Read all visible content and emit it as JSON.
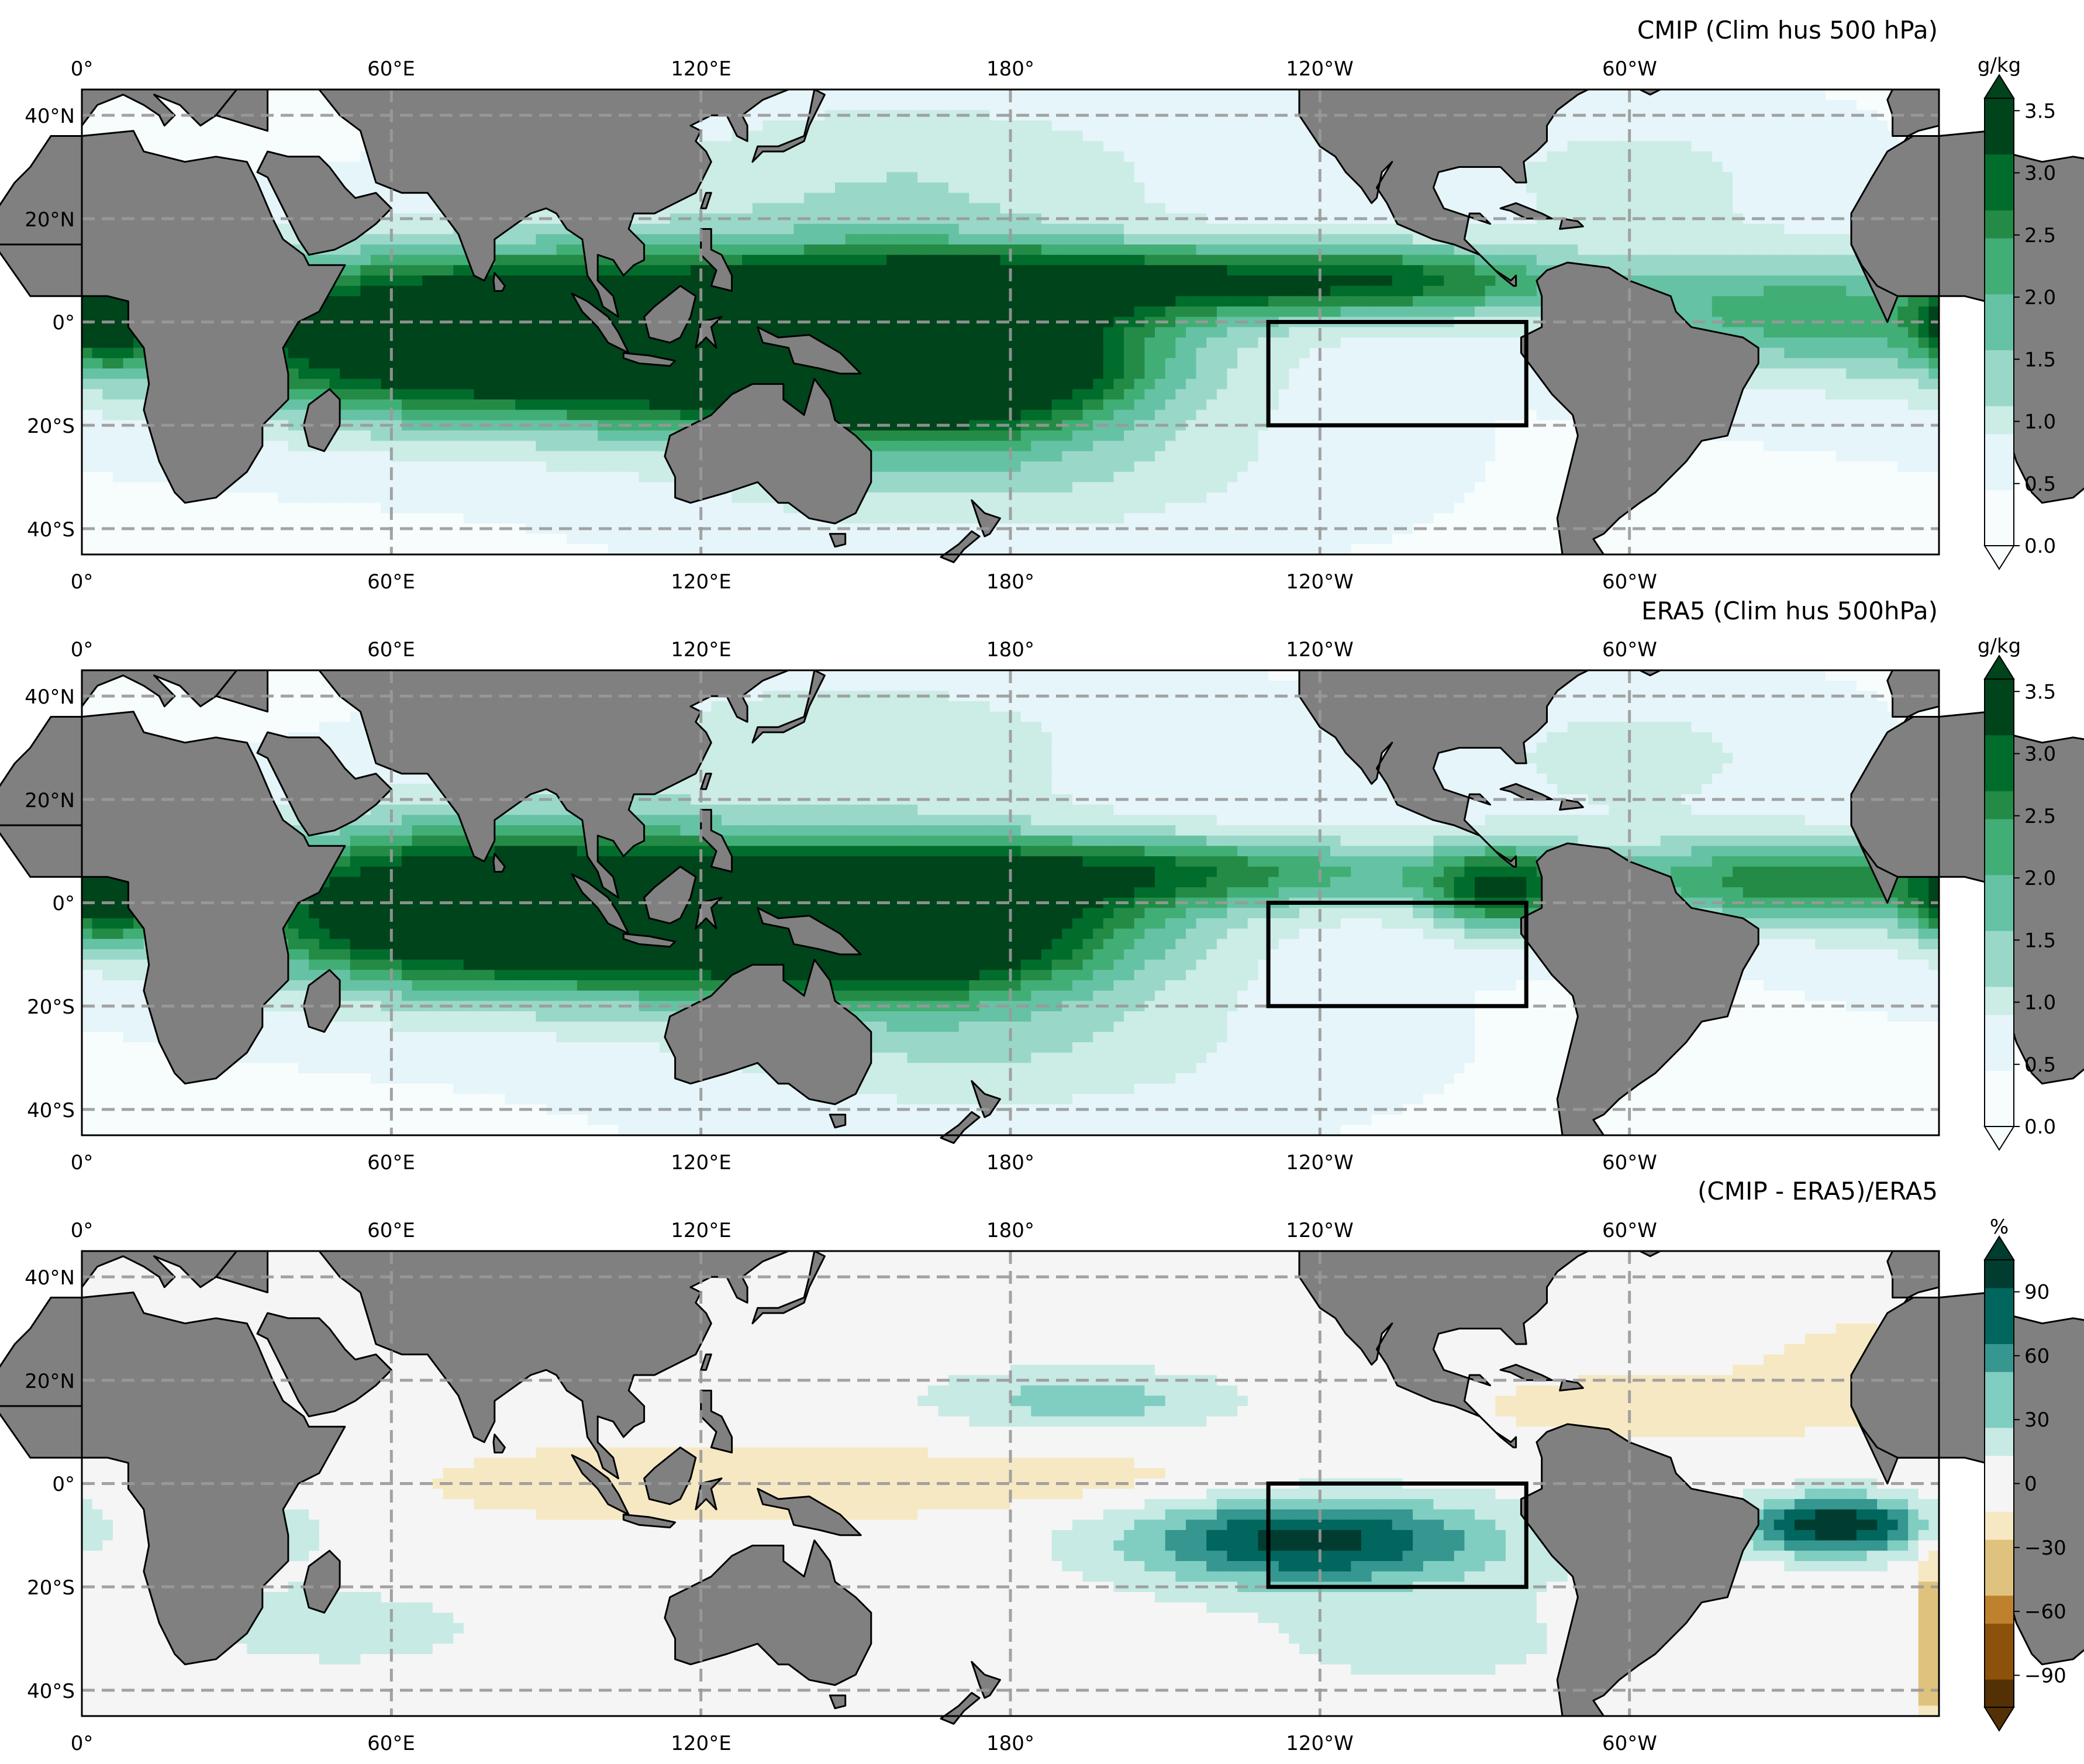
{
  "chart_data": [
    {
      "type": "heatmap",
      "title": "CMIP (Clim hus 500 hPa)",
      "colorbar_label": "g/kg",
      "colorbar_ticks": [
        "0.0",
        "0.5",
        "1.0",
        "1.5",
        "2.0",
        "2.5",
        "3.0",
        "3.5"
      ],
      "colorbar_range": [
        0,
        3.6
      ],
      "colormap": [
        "#f7fcfd",
        "#e5f5f9",
        "#ccece6",
        "#99d8c9",
        "#66c2a4",
        "#41ae76",
        "#238b45",
        "#006d2c",
        "#00441b"
      ],
      "x_ticks": [
        "0°",
        "60°E",
        "120°E",
        "180°",
        "120°W",
        "60°W"
      ],
      "y_ticks": [
        "40°N",
        "20°N",
        "0°",
        "20°S",
        "40°S"
      ],
      "region_box": {
        "lon": [
          230,
          280
        ],
        "lat": [
          -20,
          0
        ]
      },
      "field": [
        {
          "lon": 100,
          "lat": -3,
          "value": 3.0,
          "sx": 60,
          "sy": 11
        },
        {
          "lon": 150,
          "lat": -4,
          "value": 3.0,
          "sx": 35,
          "sy": 10
        },
        {
          "lon": 165,
          "lat": -10,
          "value": 2.4,
          "sx": 25,
          "sy": 8
        },
        {
          "lon": 70,
          "lat": -2,
          "value": 1.8,
          "sx": 30,
          "sy": 11
        },
        {
          "lon": 200,
          "lat": 8,
          "value": 2.2,
          "sx": 40,
          "sy": 5
        },
        {
          "lon": 255,
          "lat": 8,
          "value": 1.8,
          "sx": 25,
          "sy": 5
        },
        {
          "lon": 330,
          "lat": 2,
          "value": 1.6,
          "sx": 30,
          "sy": 8
        },
        {
          "lon": 5,
          "lat": 0,
          "value": 2.0,
          "sx": 6,
          "sy": 6
        },
        {
          "lon": 160,
          "lat": 28,
          "value": 0.8,
          "sx": 40,
          "sy": 12
        },
        {
          "lon": 300,
          "lat": 28,
          "value": 0.6,
          "sx": 25,
          "sy": 10
        },
        {
          "lon": 175,
          "lat": -28,
          "value": 0.9,
          "sx": 40,
          "sy": 10
        }
      ]
    },
    {
      "type": "heatmap",
      "title": "ERA5 (Clim hus 500hPa)",
      "colorbar_label": "g/kg",
      "colorbar_ticks": [
        "0.0",
        "0.5",
        "1.0",
        "1.5",
        "2.0",
        "2.5",
        "3.0",
        "3.5"
      ],
      "colorbar_range": [
        0,
        3.6
      ],
      "colormap": [
        "#f7fcfd",
        "#e5f5f9",
        "#ccece6",
        "#99d8c9",
        "#66c2a4",
        "#41ae76",
        "#238b45",
        "#006d2c",
        "#00441b"
      ],
      "x_ticks": [
        "0°",
        "60°E",
        "120°E",
        "180°",
        "120°W",
        "60°W"
      ],
      "y_ticks": [
        "40°N",
        "20°N",
        "0°",
        "20°S",
        "40°S"
      ],
      "region_box": {
        "lon": [
          230,
          280
        ],
        "lat": [
          -20,
          0
        ]
      },
      "field": [
        {
          "lon": 110,
          "lat": -2,
          "value": 3.3,
          "sx": 55,
          "sy": 10
        },
        {
          "lon": 160,
          "lat": -6,
          "value": 2.8,
          "sx": 30,
          "sy": 9
        },
        {
          "lon": 75,
          "lat": 0,
          "value": 2.0,
          "sx": 30,
          "sy": 12
        },
        {
          "lon": 210,
          "lat": 6,
          "value": 2.0,
          "sx": 45,
          "sy": 5
        },
        {
          "lon": 275,
          "lat": 2,
          "value": 2.2,
          "sx": 10,
          "sy": 6
        },
        {
          "lon": 335,
          "lat": 4,
          "value": 2.2,
          "sx": 30,
          "sy": 6
        },
        {
          "lon": 5,
          "lat": 0,
          "value": 2.0,
          "sx": 6,
          "sy": 6
        },
        {
          "lon": 150,
          "lat": 30,
          "value": 0.7,
          "sx": 40,
          "sy": 12
        },
        {
          "lon": 300,
          "lat": 28,
          "value": 0.6,
          "sx": 25,
          "sy": 10
        },
        {
          "lon": 175,
          "lat": -28,
          "value": 0.8,
          "sx": 40,
          "sy": 10
        }
      ]
    },
    {
      "type": "heatmap",
      "title": "(CMIP - ERA5)/ERA5",
      "colorbar_label": "%",
      "colorbar_ticks": [
        "90",
        "60",
        "30",
        "0",
        "−30",
        "−60",
        "−90"
      ],
      "colorbar_range": [
        -105,
        105
      ],
      "colormap": [
        "#543005",
        "#8c510a",
        "#bf812d",
        "#dfc27d",
        "#f6e8c3",
        "#f5f5f5",
        "#c7eae5",
        "#80cdc1",
        "#35978f",
        "#01665e",
        "#003c30"
      ],
      "x_ticks": [
        "0°",
        "60°E",
        "120°E",
        "180°",
        "120°W",
        "60°W"
      ],
      "y_ticks": [
        "40°N",
        "20°N",
        "0°",
        "20°S",
        "40°S"
      ],
      "region_box": {
        "lon": [
          230,
          280
        ],
        "lat": [
          -20,
          0
        ]
      },
      "field": [
        {
          "lon": 238,
          "lat": -11,
          "value": 95,
          "sx": 25,
          "sy": 6
        },
        {
          "lon": 340,
          "lat": -8,
          "value": 105,
          "sx": 12,
          "sy": 4
        },
        {
          "lon": 195,
          "lat": 16,
          "value": 40,
          "sx": 20,
          "sy": 4
        },
        {
          "lon": 50,
          "lat": -28,
          "value": 20,
          "sx": 20,
          "sy": 5
        },
        {
          "lon": 40,
          "lat": -8,
          "value": 15,
          "sx": 10,
          "sy": 8
        },
        {
          "lon": 120,
          "lat": 0,
          "value": -15,
          "sx": 55,
          "sy": 8
        },
        {
          "lon": 300,
          "lat": 15,
          "value": -12,
          "sx": 40,
          "sy": 8
        },
        {
          "lon": 345,
          "lat": 25,
          "value": -10,
          "sx": 15,
          "sy": 10
        },
        {
          "lon": 200,
          "lat": 0,
          "value": -12,
          "sx": 30,
          "sy": 4
        },
        {
          "lon": 358,
          "lat": -30,
          "value": -60,
          "sx": 1.5,
          "sy": 12
        },
        {
          "lon": 260,
          "lat": -30,
          "value": 15,
          "sx": 25,
          "sy": 8
        }
      ]
    }
  ]
}
